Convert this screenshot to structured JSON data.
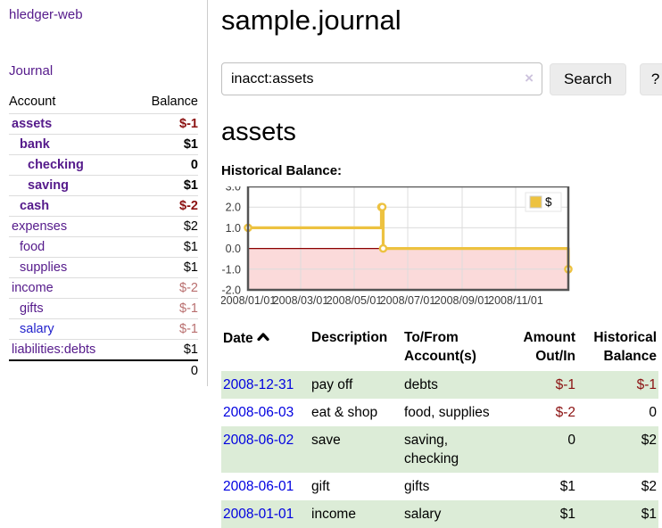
{
  "app": {
    "title": "hledger-web"
  },
  "sidebar": {
    "journal_link": "Journal",
    "account_header": "Account",
    "balance_header": "Balance",
    "rows": [
      {
        "account": "assets",
        "balance": "$-1",
        "depth": 1,
        "bold": true,
        "balance_color": "neg"
      },
      {
        "account": "bank",
        "balance": "$1",
        "depth": 2,
        "bold": true,
        "balance_color": "black"
      },
      {
        "account": "checking",
        "balance": "0",
        "depth": 3,
        "bold": true,
        "balance_color": "black"
      },
      {
        "account": "saving",
        "balance": "$1",
        "depth": 3,
        "bold": true,
        "balance_color": "black"
      },
      {
        "account": "cash",
        "balance": "$-2",
        "depth": 2,
        "bold": true,
        "balance_color": "neg"
      },
      {
        "account": "expenses",
        "balance": "$2",
        "depth": 1,
        "bold": false,
        "balance_color": "black"
      },
      {
        "account": "food",
        "balance": "$1",
        "depth": 2,
        "bold": false,
        "balance_color": "black"
      },
      {
        "account": "supplies",
        "balance": "$1",
        "depth": 2,
        "bold": false,
        "balance_color": "black"
      },
      {
        "account": "income",
        "balance": "$-2",
        "depth": 1,
        "bold": false,
        "balance_color": "neg-soft"
      },
      {
        "account": "gifts",
        "balance": "$-1",
        "depth": 2,
        "bold": false,
        "balance_color": "neg-soft"
      },
      {
        "account": "salary",
        "balance": "$-1",
        "depth": 2,
        "bold": false,
        "balance_color": "neg-soft",
        "link_color": "#2222cc"
      },
      {
        "account": "liabilities:debts",
        "balance": "$1",
        "depth": 1,
        "bold": false,
        "balance_color": "black"
      }
    ],
    "total": "0"
  },
  "main": {
    "title": "sample.journal",
    "search": {
      "value": "inacct:assets",
      "clear_icon": "×",
      "button_label": "Search",
      "help_label": "?"
    },
    "account_heading": "assets",
    "chart_heading": "Historical Balance:"
  },
  "chart_data": {
    "type": "line",
    "step": true,
    "title": "Historical Balance",
    "legend": "$",
    "legend_position": "top-right",
    "grid": true,
    "ylim": [
      -2,
      3
    ],
    "y_ticks": [
      3,
      2,
      1,
      0,
      -1,
      -2
    ],
    "y_tick_labels": [
      "3.0",
      "2.0",
      "1.0",
      "0.0",
      "-1.0",
      "-2.0"
    ],
    "x_range_days": [
      0,
      365
    ],
    "x_tick_days": [
      0,
      60,
      121,
      182,
      244,
      305
    ],
    "x_tick_labels": [
      "2008/01/01",
      "2008/03/01",
      "2008/05/01",
      "2008/07/01",
      "2008/09/01",
      "2008/11/01"
    ],
    "series": [
      {
        "name": "$",
        "color": "#edc240",
        "points": [
          {
            "date": "2008-01-01",
            "day": 0,
            "value": 1
          },
          {
            "date": "2008-06-01",
            "day": 152,
            "value": 2
          },
          {
            "date": "2008-06-02",
            "day": 153,
            "value": 2
          },
          {
            "date": "2008-06-03",
            "day": 154,
            "value": 0
          },
          {
            "date": "2008-12-31",
            "day": 365,
            "value": -1
          }
        ]
      }
    ],
    "zero_line_color": "#8b0000",
    "negative_region_color": "#fbdada",
    "plot_border_color": "#545454",
    "grid_color": "#dcdcdc"
  },
  "transactions": {
    "headers": {
      "date": "Date",
      "description": "Description",
      "accounts": "To/From Account(s)",
      "amount": "Amount Out/In",
      "balance": "Historical Balance"
    },
    "rows": [
      {
        "date": "2008-12-31",
        "description": "pay off",
        "accounts": "debts",
        "amount": "$-1",
        "amount_neg": true,
        "balance": "$-1",
        "balance_neg": true
      },
      {
        "date": "2008-06-03",
        "description": "eat & shop",
        "accounts": "food, supplies",
        "amount": "$-2",
        "amount_neg": true,
        "balance": "0",
        "balance_neg": false
      },
      {
        "date": "2008-06-02",
        "description": "save",
        "accounts": "saving, checking",
        "amount": "0",
        "amount_neg": false,
        "balance": "$2",
        "balance_neg": false
      },
      {
        "date": "2008-06-01",
        "description": "gift",
        "accounts": "gifts",
        "amount": "$1",
        "amount_neg": false,
        "balance": "$2",
        "balance_neg": false
      },
      {
        "date": "2008-01-01",
        "description": "income",
        "accounts": "salary",
        "amount": "$1",
        "amount_neg": false,
        "balance": "$1",
        "balance_neg": false
      }
    ]
  },
  "colors": {
    "link_purple": "#551a8b",
    "link_blue": "#0000e0",
    "negative_strong": "#8b1111",
    "negative_soft": "#b96f6f",
    "row_green": "#dcecd7",
    "chart_line": "#edc240"
  }
}
